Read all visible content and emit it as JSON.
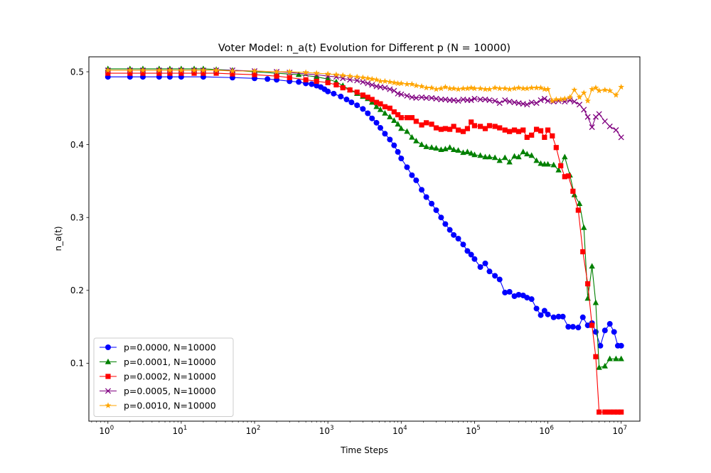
{
  "chart_data": {
    "type": "line",
    "title": "Voter Model: n_a(t) Evolution for Different p (N = 10000)",
    "xlabel": "Time Steps",
    "ylabel": "n_a(t)",
    "xscale": "log",
    "xlim": [
      0.55,
      18000000
    ],
    "ylim": [
      0.0205,
      0.5205
    ],
    "xticks": [
      {
        "value": 1,
        "base": "10",
        "exp": "0"
      },
      {
        "value": 10,
        "base": "10",
        "exp": "1"
      },
      {
        "value": 100,
        "base": "10",
        "exp": "2"
      },
      {
        "value": 1000,
        "base": "10",
        "exp": "3"
      },
      {
        "value": 10000,
        "base": "10",
        "exp": "4"
      },
      {
        "value": 100000,
        "base": "10",
        "exp": "5"
      },
      {
        "value": 1000000,
        "base": "10",
        "exp": "6"
      },
      {
        "value": 10000000,
        "base": "10",
        "exp": "7"
      }
    ],
    "yticks": [
      {
        "value": 0.1,
        "label": "0.1"
      },
      {
        "value": 0.2,
        "label": "0.2"
      },
      {
        "value": 0.3,
        "label": "0.3"
      },
      {
        "value": 0.4,
        "label": "0.4"
      },
      {
        "value": 0.5,
        "label": "0.5"
      }
    ],
    "grid": false,
    "legend_position": "lower-left",
    "series": [
      {
        "name": "p=0.0000, N=10000",
        "color": "#0000ff",
        "marker": "circle",
        "x": [
          1,
          2,
          3,
          5,
          7,
          10,
          20,
          50,
          100,
          150,
          200,
          300,
          400,
          500,
          600,
          700,
          800,
          900,
          1000,
          1200,
          1500,
          1800,
          2100,
          2500,
          3000,
          3500,
          4000,
          4600,
          5200,
          6000,
          7000,
          8000,
          9000,
          10000,
          12000,
          14000,
          16000,
          19000,
          22000,
          26000,
          30000,
          35000,
          40000,
          46000,
          52000,
          60000,
          70000,
          80000,
          90000,
          100000,
          120000,
          140000,
          160000,
          190000,
          220000,
          260000,
          300000,
          350000,
          400000,
          460000,
          520000,
          600000,
          700000,
          800000,
          900000,
          1000000,
          1200000,
          1400000,
          1600000,
          1900000,
          2200000,
          2600000,
          3000000,
          3500000,
          4000000,
          4500000,
          5200000,
          6000000,
          7000000,
          8000000,
          9000000,
          10000000
        ],
        "y": [
          0.493,
          0.493,
          0.493,
          0.493,
          0.493,
          0.493,
          0.493,
          0.492,
          0.491,
          0.49,
          0.489,
          0.487,
          0.486,
          0.484,
          0.483,
          0.481,
          0.479,
          0.476,
          0.473,
          0.47,
          0.466,
          0.462,
          0.458,
          0.454,
          0.449,
          0.443,
          0.436,
          0.43,
          0.423,
          0.415,
          0.407,
          0.399,
          0.39,
          0.381,
          0.369,
          0.358,
          0.351,
          0.338,
          0.328,
          0.319,
          0.31,
          0.3,
          0.291,
          0.283,
          0.276,
          0.271,
          0.263,
          0.254,
          0.249,
          0.243,
          0.232,
          0.237,
          0.226,
          0.22,
          0.215,
          0.197,
          0.198,
          0.192,
          0.194,
          0.193,
          0.19,
          0.188,
          0.175,
          0.166,
          0.172,
          0.167,
          0.163,
          0.164,
          0.164,
          0.15,
          0.15,
          0.149,
          0.163,
          0.152,
          0.155,
          0.143,
          0.124,
          0.145,
          0.154,
          0.143,
          0.124,
          0.124
        ]
      },
      {
        "name": "p=0.0001, N=10000",
        "color": "#008000",
        "marker": "triangle",
        "x": [
          1,
          2,
          3,
          5,
          7,
          10,
          15,
          20,
          30,
          50,
          100,
          200,
          400,
          700,
          1000,
          1300,
          1600,
          2000,
          2500,
          3000,
          3500,
          4000,
          4600,
          5200,
          6000,
          7000,
          8000,
          9000,
          10000,
          12000,
          14000,
          16000,
          19000,
          22000,
          26000,
          30000,
          35000,
          40000,
          46000,
          52000,
          60000,
          70000,
          80000,
          90000,
          100000,
          120000,
          140000,
          160000,
          190000,
          220000,
          260000,
          300000,
          350000,
          400000,
          460000,
          520000,
          600000,
          700000,
          800000,
          900000,
          1000000,
          1200000,
          1400000,
          1700000,
          2000000,
          2300000,
          2700000,
          3100000,
          3500000,
          4000000,
          4500000,
          5000000,
          6000000,
          7000000,
          8500000,
          10000000
        ],
        "y": [
          0.504,
          0.504,
          0.504,
          0.504,
          0.504,
          0.504,
          0.504,
          0.504,
          0.503,
          0.502,
          0.5,
          0.498,
          0.496,
          0.493,
          0.49,
          0.486,
          0.481,
          0.475,
          0.47,
          0.466,
          0.463,
          0.458,
          0.452,
          0.448,
          0.443,
          0.438,
          0.433,
          0.428,
          0.422,
          0.418,
          0.41,
          0.405,
          0.4,
          0.397,
          0.396,
          0.395,
          0.393,
          0.394,
          0.396,
          0.393,
          0.392,
          0.389,
          0.39,
          0.388,
          0.386,
          0.385,
          0.383,
          0.383,
          0.382,
          0.378,
          0.382,
          0.376,
          0.384,
          0.383,
          0.39,
          0.387,
          0.385,
          0.378,
          0.374,
          0.373,
          0.373,
          0.372,
          0.365,
          0.383,
          0.358,
          0.331,
          0.319,
          0.286,
          0.189,
          0.233,
          0.183,
          0.094,
          0.096,
          0.106,
          0.106,
          0.106
        ]
      },
      {
        "name": "p=0.0002, N=10000",
        "color": "#ff0000",
        "marker": "square",
        "x": [
          1,
          2,
          3,
          5,
          7,
          10,
          15,
          20,
          30,
          50,
          100,
          200,
          300,
          500,
          700,
          1000,
          1300,
          1600,
          2000,
          2500,
          3000,
          3500,
          4000,
          4600,
          5200,
          6000,
          7000,
          8000,
          9000,
          10000,
          12000,
          14000,
          16000,
          19000,
          22000,
          26000,
          30000,
          35000,
          40000,
          46000,
          52000,
          60000,
          70000,
          80000,
          90000,
          100000,
          120000,
          140000,
          160000,
          190000,
          220000,
          260000,
          300000,
          350000,
          400000,
          460000,
          520000,
          600000,
          700000,
          800000,
          900000,
          1000000,
          1150000,
          1300000,
          1500000,
          1700000,
          1900000,
          2200000,
          2600000,
          3000000,
          3500000,
          4000000,
          4500000,
          5000000,
          6000000,
          7000000,
          8000000,
          9000000,
          10000000
        ],
        "y": [
          0.498,
          0.498,
          0.498,
          0.498,
          0.498,
          0.498,
          0.498,
          0.498,
          0.498,
          0.497,
          0.496,
          0.494,
          0.492,
          0.489,
          0.487,
          0.485,
          0.482,
          0.478,
          0.475,
          0.472,
          0.468,
          0.465,
          0.462,
          0.458,
          0.456,
          0.452,
          0.45,
          0.445,
          0.441,
          0.437,
          0.437,
          0.437,
          0.432,
          0.427,
          0.43,
          0.428,
          0.423,
          0.421,
          0.422,
          0.421,
          0.425,
          0.42,
          0.418,
          0.422,
          0.431,
          0.426,
          0.425,
          0.422,
          0.426,
          0.425,
          0.423,
          0.42,
          0.418,
          0.42,
          0.418,
          0.42,
          0.41,
          0.413,
          0.421,
          0.419,
          0.41,
          0.42,
          0.412,
          0.396,
          0.371,
          0.356,
          0.357,
          0.336,
          0.31,
          0.253,
          0.209,
          0.152,
          0.109,
          0.033,
          0.033,
          0.033,
          0.033,
          0.033,
          0.033
        ]
      },
      {
        "name": "p=0.0005, N=10000",
        "color": "#800080",
        "marker": "x",
        "x": [
          1,
          2,
          3,
          5,
          7,
          10,
          15,
          20,
          30,
          50,
          100,
          200,
          300,
          500,
          700,
          1000,
          1300,
          1600,
          2000,
          2500,
          3000,
          3500,
          4000,
          4600,
          5200,
          6000,
          7000,
          8000,
          9000,
          10000,
          12000,
          14000,
          16000,
          19000,
          22000,
          26000,
          30000,
          35000,
          40000,
          46000,
          52000,
          60000,
          70000,
          80000,
          90000,
          100000,
          120000,
          140000,
          160000,
          190000,
          220000,
          260000,
          300000,
          350000,
          400000,
          460000,
          520000,
          600000,
          700000,
          800000,
          900000,
          1000000,
          1200000,
          1400000,
          1700000,
          2000000,
          2300000,
          2700000,
          3100000,
          3500000,
          4000000,
          4500000,
          5000000,
          6000000,
          7000000,
          8500000,
          10000000
        ],
        "y": [
          0.502,
          0.502,
          0.502,
          0.502,
          0.502,
          0.502,
          0.502,
          0.502,
          0.502,
          0.502,
          0.501,
          0.5,
          0.499,
          0.497,
          0.496,
          0.494,
          0.493,
          0.491,
          0.489,
          0.488,
          0.486,
          0.484,
          0.482,
          0.48,
          0.479,
          0.478,
          0.476,
          0.474,
          0.47,
          0.469,
          0.467,
          0.465,
          0.464,
          0.465,
          0.464,
          0.464,
          0.463,
          0.462,
          0.462,
          0.461,
          0.461,
          0.46,
          0.462,
          0.461,
          0.461,
          0.463,
          0.462,
          0.462,
          0.461,
          0.46,
          0.457,
          0.461,
          0.459,
          0.458,
          0.457,
          0.456,
          0.455,
          0.458,
          0.457,
          0.461,
          0.463,
          0.46,
          0.459,
          0.46,
          0.459,
          0.461,
          0.459,
          0.455,
          0.448,
          0.438,
          0.424,
          0.438,
          0.442,
          0.432,
          0.425,
          0.42,
          0.41
        ]
      },
      {
        "name": "p=0.0010, N=10000",
        "color": "#ffa500",
        "marker": "star",
        "x": [
          1,
          2,
          3,
          5,
          7,
          10,
          15,
          20,
          30,
          50,
          100,
          200,
          300,
          500,
          700,
          1000,
          1300,
          1600,
          2000,
          2500,
          3000,
          3500,
          4000,
          4600,
          5200,
          6000,
          7000,
          8000,
          9000,
          10000,
          12000,
          14000,
          16000,
          19000,
          22000,
          26000,
          30000,
          35000,
          40000,
          46000,
          52000,
          60000,
          70000,
          80000,
          90000,
          100000,
          120000,
          140000,
          160000,
          190000,
          220000,
          260000,
          300000,
          350000,
          400000,
          460000,
          520000,
          600000,
          700000,
          800000,
          900000,
          1000000,
          1150000,
          1300000,
          1500000,
          1700000,
          2000000,
          2300000,
          2700000,
          3100000,
          3500000,
          4000000,
          4500000,
          5000000,
          6000000,
          7000000,
          8500000,
          10000000
        ],
        "y": [
          0.502,
          0.502,
          0.502,
          0.502,
          0.502,
          0.502,
          0.502,
          0.502,
          0.502,
          0.501,
          0.501,
          0.5,
          0.5,
          0.499,
          0.498,
          0.497,
          0.496,
          0.495,
          0.494,
          0.493,
          0.492,
          0.491,
          0.49,
          0.489,
          0.487,
          0.487,
          0.486,
          0.485,
          0.484,
          0.484,
          0.483,
          0.483,
          0.481,
          0.48,
          0.478,
          0.478,
          0.476,
          0.477,
          0.479,
          0.477,
          0.477,
          0.476,
          0.477,
          0.477,
          0.478,
          0.477,
          0.477,
          0.476,
          0.476,
          0.478,
          0.477,
          0.477,
          0.476,
          0.477,
          0.478,
          0.477,
          0.477,
          0.478,
          0.478,
          0.478,
          0.476,
          0.476,
          0.46,
          0.462,
          0.462,
          0.463,
          0.465,
          0.475,
          0.465,
          0.471,
          0.46,
          0.476,
          0.478,
          0.474,
          0.475,
          0.474,
          0.468,
          0.479
        ]
      }
    ]
  }
}
